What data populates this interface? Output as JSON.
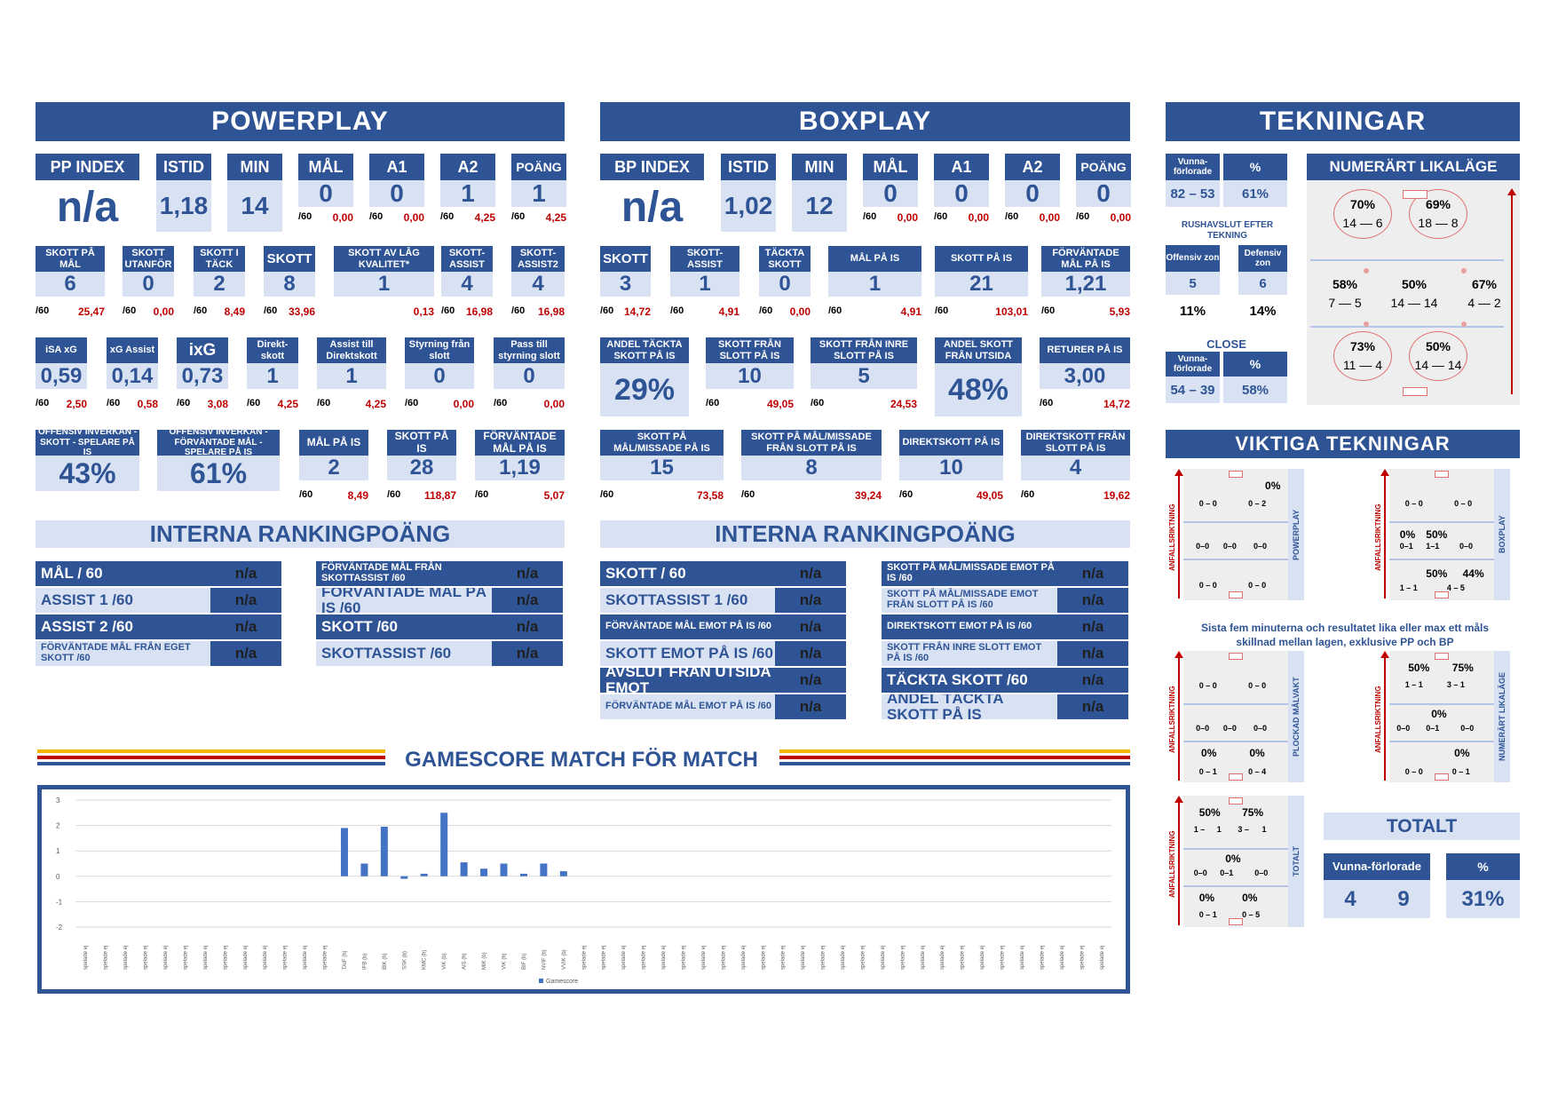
{
  "powerplay": {
    "title": "POWERPLAY",
    "top": [
      {
        "label": "PP INDEX",
        "value": "n/a"
      },
      {
        "label": "ISTID",
        "value": "1,18"
      },
      {
        "label": "MIN",
        "value": "14"
      },
      {
        "label": "MÅL",
        "value": "0",
        "p60": "/60",
        "r": "0,00"
      },
      {
        "label": "A1",
        "value": "0",
        "p60": "/60",
        "r": "0,00"
      },
      {
        "label": "A2",
        "value": "1",
        "p60": "/60",
        "r": "4,25"
      },
      {
        "label": "POÄNG",
        "value": "1",
        "p60": "/60",
        "r": "4,25"
      }
    ],
    "row2": [
      {
        "label": "SKOTT PÅ MÅL",
        "value": "6",
        "p60": "/60",
        "r": "25,47"
      },
      {
        "label": "SKOTT UTANFÖR",
        "value": "0",
        "p60": "/60",
        "r": "0,00"
      },
      {
        "label": "SKOTT I TÄCK",
        "value": "2",
        "p60": "/60",
        "r": "8,49"
      },
      {
        "label": "SKOTT",
        "value": "8",
        "p60": "/60",
        "r": "33,96"
      },
      {
        "label": "SKOTT AV LÅG KVALITET*",
        "value": "1",
        "p60": "",
        "r": "0,13"
      },
      {
        "label": "SKOTT-ASSIST",
        "value": "4",
        "p60": "/60",
        "r": "16,98"
      },
      {
        "label": "SKOTT-ASSIST2",
        "value": "4",
        "p60": "/60",
        "r": "16,98"
      }
    ],
    "row3": [
      {
        "label": "iSA xG",
        "value": "0,59",
        "p60": "/60",
        "r": "2,50"
      },
      {
        "label": "xG Assist",
        "value": "0,14",
        "p60": "/60",
        "r": "0,58"
      },
      {
        "label": "ixG",
        "value": "0,73",
        "p60": "/60",
        "r": "3,08"
      },
      {
        "label": "Direkt-skott",
        "value": "1",
        "p60": "/60",
        "r": "4,25"
      },
      {
        "label": "Assist till Direktskott",
        "value": "1",
        "p60": "/60",
        "r": "4,25"
      },
      {
        "label": "Styrning från slott",
        "value": "0",
        "p60": "/60",
        "r": "0,00"
      },
      {
        "label": "Pass till styrning slott",
        "value": "0",
        "p60": "/60",
        "r": "0,00"
      }
    ],
    "row4": [
      {
        "label": "OFFENSIV INVERKAN - SKOTT - SPELARE PÅ IS",
        "value": "43%"
      },
      {
        "label": "OFFENSIV INVERKAN - FÖRVÄNTADE MÅL - SPELARE PÅ IS",
        "value": "61%"
      },
      {
        "label": "MÅL PÅ IS",
        "value": "2",
        "p60": "/60",
        "r": "8,49"
      },
      {
        "label": "SKOTT PÅ IS",
        "value": "28",
        "p60": "/60",
        "r": "118,87"
      },
      {
        "label": "FÖRVÄNTADE MÅL PÅ IS",
        "value": "1,19",
        "p60": "/60",
        "r": "5,07"
      }
    ],
    "ranking_title": "INTERNA RANKINGPOÄNG",
    "ranking_left": [
      {
        "label": "MÅL / 60",
        "value": "n/a"
      },
      {
        "label": "ASSIST 1 /60",
        "value": "n/a"
      },
      {
        "label": "ASSIST 2 /60",
        "value": "n/a"
      },
      {
        "label": "FÖRVÄNTADE MÅL FRÅN EGET SKOTT /60",
        "value": "n/a"
      }
    ],
    "ranking_right": [
      {
        "label": "FÖRVÄNTADE MÅL FRÅN SKOTTASSIST /60",
        "value": "n/a"
      },
      {
        "label": "FÖRVÄNTADE MÅL PÅ IS /60",
        "value": "n/a"
      },
      {
        "label": "SKOTT /60",
        "value": "n/a"
      },
      {
        "label": "SKOTTASSIST /60",
        "value": "n/a"
      }
    ]
  },
  "boxplay": {
    "title": "BOXPLAY",
    "top": [
      {
        "label": "BP INDEX",
        "value": "n/a"
      },
      {
        "label": "ISTID",
        "value": "1,02"
      },
      {
        "label": "MIN",
        "value": "12"
      },
      {
        "label": "MÅL",
        "value": "0",
        "p60": "/60",
        "r": "0,00"
      },
      {
        "label": "A1",
        "value": "0",
        "p60": "/60",
        "r": "0,00"
      },
      {
        "label": "A2",
        "value": "0",
        "p60": "/60",
        "r": "0,00"
      },
      {
        "label": "POÄNG",
        "value": "0",
        "p60": "/60",
        "r": "0,00"
      }
    ],
    "row2": [
      {
        "label": "SKOTT",
        "value": "3",
        "p60": "/60",
        "r": "14,72"
      },
      {
        "label": "SKOTT-ASSIST",
        "value": "1",
        "p60": "/60",
        "r": "4,91"
      },
      {
        "label": "TÄCKTA SKOTT",
        "value": "0",
        "p60": "/60",
        "r": "0,00"
      },
      {
        "label": "MÅL PÅ IS",
        "value": "1",
        "p60": "/60",
        "r": "4,91"
      },
      {
        "label": "SKOTT PÅ IS",
        "value": "21",
        "p60": "/60",
        "r": "103,01"
      },
      {
        "label": "FÖRVÄNTADE MÅL PÅ IS",
        "value": "1,21",
        "p60": "/60",
        "r": "5,93"
      }
    ],
    "row3": [
      {
        "label": "ANDEL TÄCKTA SKOTT PÅ IS",
        "value": "29%"
      },
      {
        "label": "SKOTT FRÅN SLOTT PÅ IS",
        "value": "10",
        "p60": "/60",
        "r": "49,05"
      },
      {
        "label": "SKOTT FRÅN INRE SLOTT PÅ IS",
        "value": "5",
        "p60": "/60",
        "r": "24,53"
      },
      {
        "label": "ANDEL SKOTT FRÅN UTSIDA",
        "value": "48%"
      },
      {
        "label": "RETURER PÅ IS",
        "value": "3,00",
        "p60": "/60",
        "r": "14,72"
      }
    ],
    "row4": [
      {
        "label": "SKOTT PÅ MÅL/MISSADE PÅ IS",
        "value": "15",
        "p60": "/60",
        "r": "73,58"
      },
      {
        "label": "SKOTT PÅ MÅL/MISSADE FRÅN SLOTT PÅ IS",
        "value": "8",
        "p60": "/60",
        "r": "39,24"
      },
      {
        "label": "DIREKTSKOTT PÅ IS",
        "value": "10",
        "p60": "/60",
        "r": "49,05"
      },
      {
        "label": "DIREKTSKOTT FRÅN SLOTT PÅ IS",
        "value": "4",
        "p60": "/60",
        "r": "19,62"
      }
    ],
    "ranking_title": "INTERNA RANKINGPOÄNG",
    "ranking_left": [
      {
        "label": "SKOTT / 60",
        "value": "n/a"
      },
      {
        "label": "SKOTTASSIST 1 /60",
        "value": "n/a"
      },
      {
        "label": "FÖRVÄNTADE MÅL EMOT PÅ IS /60",
        "value": "n/a"
      },
      {
        "label": "SKOTT EMOT PÅ IS /60",
        "value": "n/a"
      },
      {
        "label": "AVSLUT FRÅN UTSIDA EMOT",
        "value": "n/a"
      },
      {
        "label": "FÖRVÄNTADE MÅL EMOT PÅ IS /60",
        "value": "n/a"
      }
    ],
    "ranking_right": [
      {
        "label": "SKOTT PÅ MÅL/MISSADE EMOT PÅ IS /60",
        "value": "n/a"
      },
      {
        "label": "SKOTT PÅ MÅL/MISSADE EMOT FRÅN SLOTT PÅ IS /60",
        "value": "n/a"
      },
      {
        "label": "DIREKTSKOTT EMOT PÅ IS /60",
        "value": "n/a"
      },
      {
        "label": "SKOTT FRÅN INRE SLOTT EMOT PÅ IS /60",
        "value": "n/a"
      },
      {
        "label": "TÄCKTA SKOTT /60",
        "value": "n/a"
      },
      {
        "label": "ANDEL TÄCKTA SKOTT PÅ IS",
        "value": "n/a"
      }
    ]
  },
  "tekningar": {
    "title": "TEKNINGAR",
    "vf_label": "Vunna-förlorade",
    "pct_label": "%",
    "vf": "82 – 53",
    "pct": "61%",
    "rush_label": "RUSHAVSLUT EFTER TEKNING",
    "off_label": "Offensiv zon",
    "def_label": "Defensiv zon",
    "off": "5",
    "def": "6",
    "off_pct": "11%",
    "def_pct": "14%",
    "close_label": "CLOSE",
    "close_vf": "54 – 39",
    "close_pct": "58%",
    "numerart_title": "NUMERÄRT LIKALÄGE",
    "circles": [
      {
        "pct": "70%",
        "score": "14 — 6"
      },
      {
        "pct": "69%",
        "score": "18 — 8"
      },
      {
        "pct": "58%",
        "score": "7 — 5"
      },
      {
        "pct": "50%",
        "score": "14 — 14"
      },
      {
        "pct": "67%",
        "score": "4 — 2"
      },
      {
        "pct": "73%",
        "score": "11 — 4"
      },
      {
        "pct": "50%",
        "score": "14 — 14"
      }
    ]
  },
  "viktiga": {
    "title": "VIKTIGA TEKNINGAR",
    "axis_label": "ANFALLSRIKTNING",
    "note": "Sista fem minuterna och resultatet lika eller max ett måls skillnad mellan lagen, exklusive PP och BP",
    "panels": [
      {
        "side": "POWERPLAY",
        "texts": [
          "0%",
          "0 – 0",
          "0 – 2",
          "0–0",
          "0–0",
          "0–0",
          "0 – 0",
          "0 – 0"
        ]
      },
      {
        "side": "BOXPLAY",
        "texts": [
          "0 – 0",
          "0 – 0",
          "0%",
          "50%",
          "0–1",
          "1–1",
          "0–0",
          "50%",
          "44%",
          "1 – 1",
          "4 – 5"
        ]
      },
      {
        "side": "PLOCKAD MÅLVAKT",
        "texts": [
          "0 – 0",
          "0 – 0",
          "0–0",
          "0–0",
          "0–0",
          "0%",
          "0%",
          "0 – 1",
          "0 – 4"
        ]
      },
      {
        "side": "NUMERÄRT LIKALÄGE",
        "texts": [
          "50%",
          "75%",
          "1 – 1",
          "3 – 1",
          "0%",
          "0–0",
          "0–1",
          "0–0",
          "0%",
          "0 – 0",
          "0 – 1"
        ]
      },
      {
        "side": "TOTALT",
        "texts": [
          "50%",
          "75%",
          "1 –",
          "1",
          "3 –",
          "1",
          "0%",
          "0–0",
          "0–1",
          "0–0",
          "0%",
          "0%",
          "0 – 1",
          "0 – 5"
        ]
      }
    ],
    "totalt_title": "TOTALT",
    "vf_label": "Vunna-förlorade",
    "pct_label": "%",
    "won": "4",
    "lost": "9",
    "pct": "31%"
  },
  "gamescore": {
    "title": "GAMESCORE MATCH FÖR MATCH"
  },
  "chart_data": {
    "type": "bar",
    "title": "",
    "ylim": [
      -2,
      3
    ],
    "yticks": [
      "3",
      "2",
      "1",
      "0",
      "-1",
      "-2"
    ],
    "legend": "Gamescore",
    "legend_position": "bottom",
    "categories": [
      "spelade ej",
      "spelade ej",
      "spelade ej",
      "spelade ej",
      "spelade ej",
      "spelade ej",
      "spelade ej",
      "spelade ej",
      "spelade ej",
      "spelade ej",
      "spelade ej",
      "spelade ej",
      "spelade ej",
      "TAIF (h)",
      "IFB (b)",
      "BIK (h)",
      "SSK (b)",
      "KMC (h)",
      "VIK (b)",
      "AIS (h)",
      "MIK (b)",
      "VIK (h)",
      "BIF (h)",
      "NVIF (b)",
      "VVIK (b)",
      "spelade ej",
      "spelade ej",
      "spelade ej",
      "spelade ej",
      "spelade ej",
      "spelade ej",
      "spelade ej",
      "spelade ej",
      "spelade ej",
      "spelade ej",
      "spelade ej",
      "spelade ej",
      "spelade ej",
      "spelade ej",
      "spelade ej",
      "spelade ej",
      "spelade ej",
      "spelade ej",
      "spelade ej",
      "spelade ej",
      "spelade ej",
      "spelade ej",
      "spelade ej",
      "spelade ej",
      "spelade ej",
      "spelade ej",
      "spelade ej"
    ],
    "series": [
      {
        "name": "Gamescore",
        "values": [
          0,
          0,
          0,
          0,
          0,
          0,
          0,
          0,
          0,
          0,
          0,
          0,
          0,
          1.9,
          0.5,
          1.95,
          -0.1,
          0.1,
          2.5,
          0.55,
          0.3,
          0.5,
          0.1,
          0.5,
          0.2,
          0,
          0,
          0,
          0,
          0,
          0,
          0,
          0,
          0,
          0,
          0,
          0,
          0,
          0,
          0,
          0,
          0,
          0,
          0,
          0,
          0,
          0,
          0,
          0,
          0,
          0,
          0
        ]
      }
    ]
  }
}
